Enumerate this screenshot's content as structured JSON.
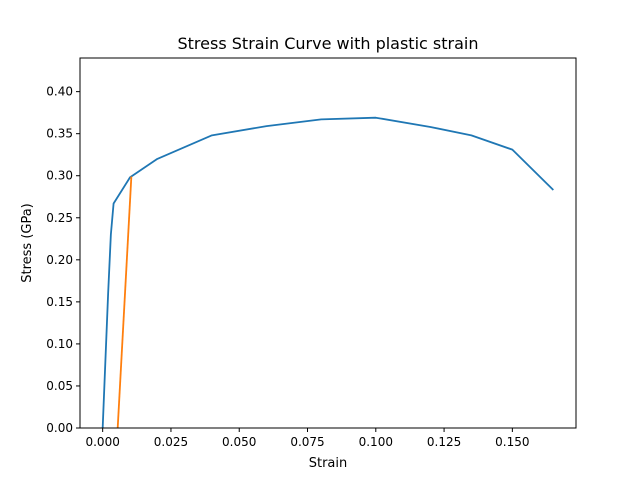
{
  "chart_data": {
    "type": "line",
    "title": "Stress Strain Curve with plastic strain",
    "xlabel": "Strain",
    "ylabel": "Stress (GPa)",
    "xlim": [
      -0.0083,
      0.1733
    ],
    "ylim": [
      0.0,
      0.44
    ],
    "xticks": [
      "0.000",
      "0.025",
      "0.050",
      "0.075",
      "0.100",
      "0.125",
      "0.150"
    ],
    "yticks": [
      "0.00",
      "0.05",
      "0.10",
      "0.15",
      "0.20",
      "0.25",
      "0.30",
      "0.35",
      "0.40"
    ],
    "grid": false,
    "series": [
      {
        "color": "#1f77b4",
        "x": [
          0.0,
          0.002,
          0.003,
          0.004,
          0.01,
          0.02,
          0.04,
          0.06,
          0.08,
          0.1,
          0.12,
          0.135,
          0.15,
          0.165
        ],
        "y": [
          0.0,
          0.16,
          0.23,
          0.267,
          0.298,
          0.32,
          0.348,
          0.359,
          0.367,
          0.369,
          0.358,
          0.348,
          0.331,
          0.283
        ]
      },
      {
        "color": "#ff7f0e",
        "x": [
          0.0055,
          0.0105
        ],
        "y": [
          0.0,
          0.299
        ]
      }
    ]
  }
}
